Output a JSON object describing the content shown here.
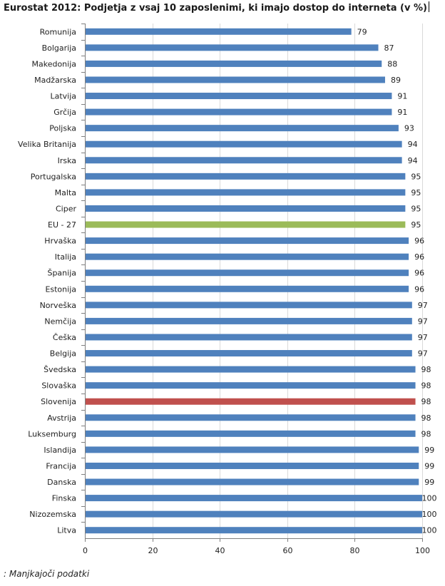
{
  "title": "Eurostat 2012: Podjetja z vsaj 10 zaposlenimi, ki imajo dostop do interneta (v %)",
  "footnote": ": Manjkajoči podatki",
  "colors": {
    "default": "#4f81bd",
    "eu": "#9bbb59",
    "slovenia": "#c0504d",
    "grid": "#d9d9d9",
    "axis": "#7f7f7f"
  },
  "chart_data": {
    "type": "bar",
    "orientation": "horizontal",
    "title": "Eurostat 2012: Podjetja z vsaj 10 zaposlenimi, ki imajo dostop do interneta (v %)",
    "xlabel": "",
    "ylabel": "",
    "xlim": [
      0,
      100
    ],
    "x_ticks": [
      0,
      20,
      40,
      60,
      80,
      100
    ],
    "grid": "vertical",
    "legend": "none",
    "categories": [
      "Romunija",
      "Bolgarija",
      "Makedonija",
      "Madžarska",
      "Latvija",
      "Grčija",
      "Poljska",
      "Velika Britanija",
      "Irska",
      "Portugalska",
      "Malta",
      "Ciper",
      "EU - 27",
      "Hrvaška",
      "Italija",
      "Španija",
      "Estonija",
      "Norveška",
      "Nemčija",
      "Češka",
      "Belgija",
      "Švedska",
      "Slovaška",
      "Slovenija",
      "Avstrija",
      "Luksemburg",
      "Islandija",
      "Francija",
      "Danska",
      "Finska",
      "Nizozemska",
      "Litva"
    ],
    "values": [
      79,
      87,
      88,
      89,
      91,
      91,
      93,
      94,
      94,
      95,
      95,
      95,
      95,
      96,
      96,
      96,
      96,
      97,
      97,
      97,
      97,
      98,
      98,
      98,
      98,
      98,
      99,
      99,
      99,
      100,
      100,
      100
    ],
    "highlight": {
      "EU - 27": "eu",
      "Slovenija": "slovenia"
    }
  }
}
